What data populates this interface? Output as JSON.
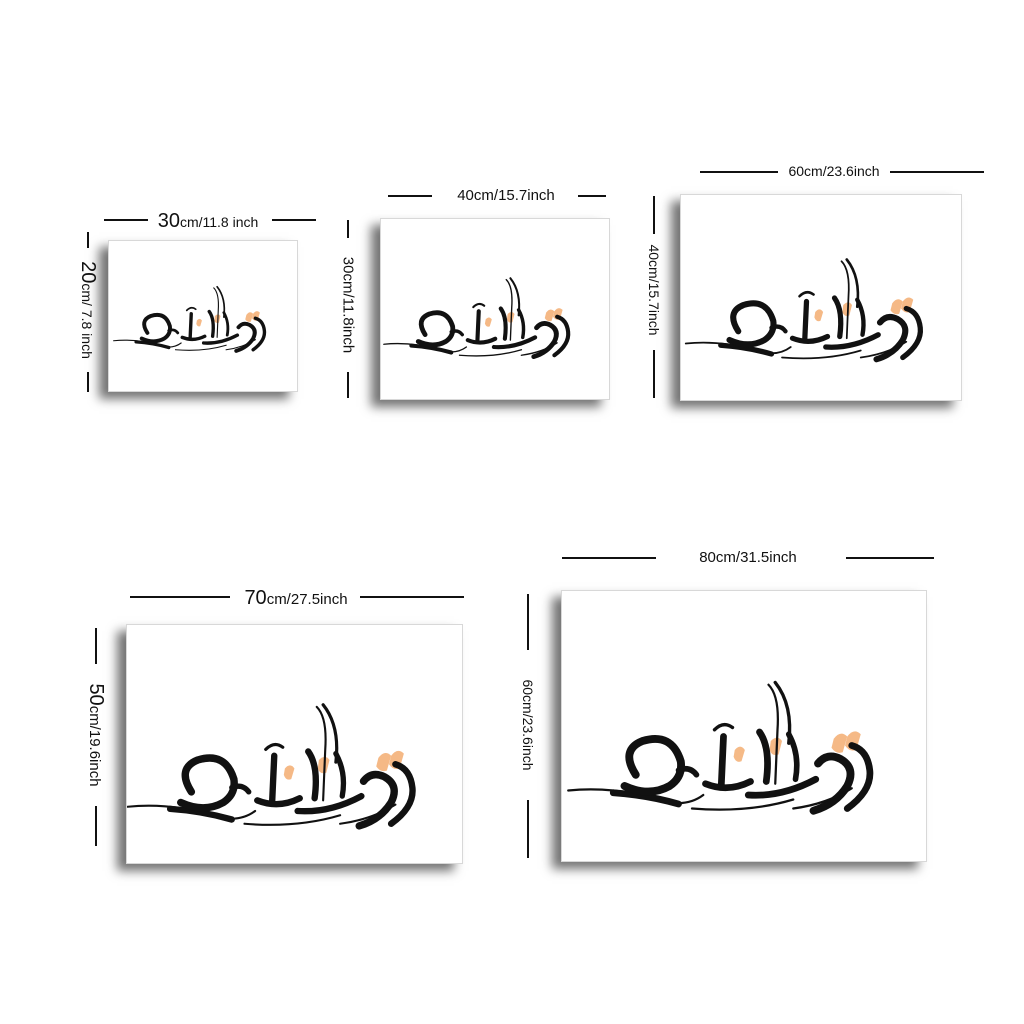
{
  "sizes": [
    {
      "width_main": "30",
      "width_unit": "cm/11.8 inch",
      "height_main": "20",
      "height_unit": "cm/ 7.8 inch"
    },
    {
      "width_label": "40cm/15.7inch",
      "height_label": "30cm/11.8inch"
    },
    {
      "width_label": "60cm/23.6inch",
      "height_label": "40cm/15.7inch"
    },
    {
      "width_main": "70",
      "width_unit": "cm/27.5inch",
      "height_main": "50",
      "height_unit": "cm/19.6inch"
    },
    {
      "width_label": "80cm/31.5inch",
      "height_label": "60cm/23.6inch"
    }
  ],
  "colors": {
    "ink": "#111111",
    "accent": "#f4b27a",
    "background": "#ffffff"
  }
}
